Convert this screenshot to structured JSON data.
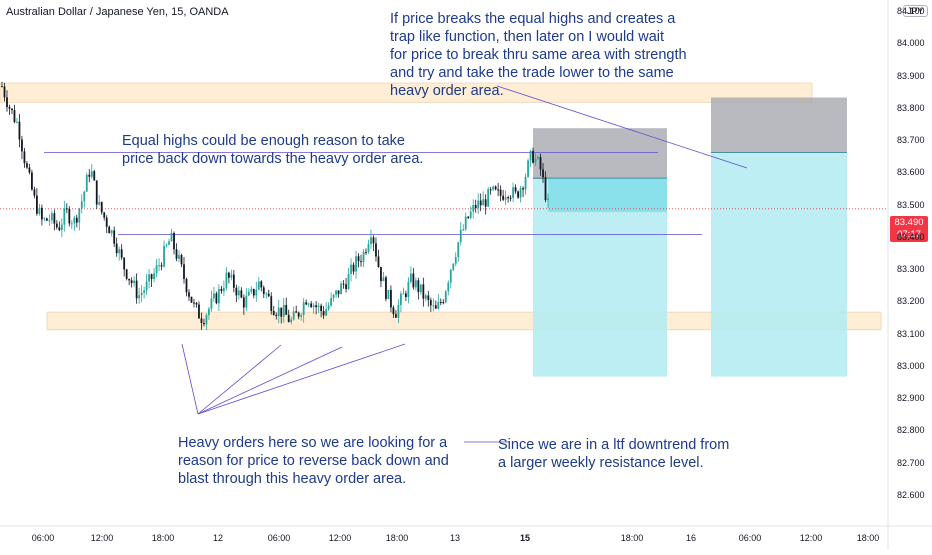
{
  "header": {
    "title": "Australian Dollar / Japanese Yen, 15, OANDA",
    "currency": "JPY"
  },
  "annotations": {
    "top_note": [
      "If price breaks the equal highs and creates a",
      "trap like function, then later on I would wait",
      "for price to break thru same area with strength",
      "and try and take the trade lower to the same",
      "heavy order area."
    ],
    "mid_note": [
      "Equal highs could be enough reason to take",
      "price back down towards the heavy order area."
    ],
    "bottom_left_note": [
      "Heavy orders here so we are looking for a",
      "reason for price to reverse back down and",
      "blast through this heavy order area."
    ],
    "bottom_right_note": [
      "Since we are in a ltf downtrend from",
      "a larger weekly resistance level."
    ]
  },
  "price_badge": {
    "price": "83.490",
    "countdown": "07:17"
  },
  "colors": {
    "up": "#26a69a",
    "down": "#131722",
    "zone": "#ffe0b2",
    "stop": "#a0a3ab",
    "target": "#b2ebf2",
    "trend": "#5c4ccf",
    "price_line": "#f23645"
  },
  "chart_data": {
    "type": "candlestick",
    "title": "Australian Dollar / Japanese Yen, 15, OANDA",
    "ylim": [
      82.56,
      84.14
    ],
    "yticks": [
      "84.100",
      "84.000",
      "83.900",
      "83.800",
      "83.700",
      "83.600",
      "83.500",
      "83.400",
      "83.300",
      "83.200",
      "83.100",
      "83.000",
      "82.900",
      "82.800",
      "82.700",
      "82.600"
    ],
    "xticks": [
      "06:00",
      "12:00",
      "18:00",
      "12",
      "06:00",
      "12:00",
      "18:00",
      "13",
      "15",
      "18:00",
      "16",
      "06:00",
      "12:00",
      "18:00"
    ],
    "bold_xticks": [
      "15"
    ],
    "current_price": 83.49,
    "levels": {
      "equal_highs": 83.665,
      "lower_highs": 83.41,
      "upper_zone": [
        83.82,
        83.88
      ],
      "lower_zone": [
        83.115,
        83.17
      ]
    },
    "trade_setup_1": {
      "stop_top": 83.74,
      "entry": 83.585,
      "target": 82.97
    },
    "trade_setup_2": {
      "stop_top": 83.835,
      "entry": 83.665,
      "target": 82.97
    },
    "price_path": [
      83.87,
      83.8,
      83.75,
      83.62,
      83.52,
      83.45,
      83.46,
      83.43,
      83.48,
      83.45,
      83.52,
      83.62,
      83.5,
      83.45,
      83.4,
      83.32,
      83.27,
      83.22,
      83.25,
      83.29,
      83.34,
      83.4,
      83.33,
      83.25,
      83.18,
      83.15,
      83.19,
      83.23,
      83.28,
      83.25,
      83.2,
      83.22,
      83.26,
      83.22,
      83.18,
      83.17,
      83.14,
      83.17,
      83.22,
      83.19,
      83.17,
      83.2,
      83.24,
      83.27,
      83.32,
      83.35,
      83.43,
      83.3,
      83.22,
      83.17,
      83.22,
      83.27,
      83.24,
      83.2,
      83.17,
      83.22,
      83.32,
      83.4,
      83.46,
      83.5,
      83.51,
      83.54,
      83.53,
      83.55,
      83.53,
      83.58,
      83.66,
      83.62,
      83.5
    ]
  }
}
